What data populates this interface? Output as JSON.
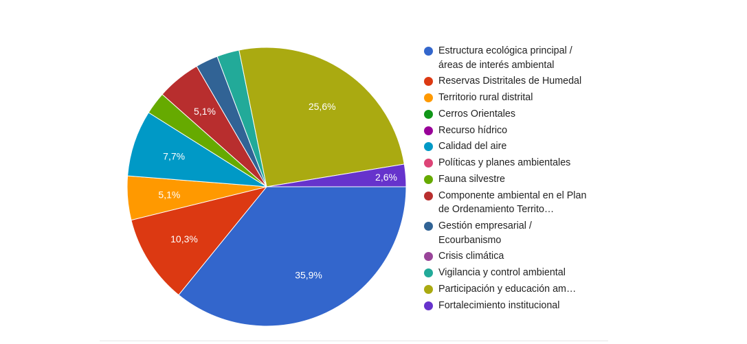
{
  "chart_data": {
    "type": "pie",
    "categories": [
      "Estructura ecológica principal / áreas de interés ambiental",
      "Reservas Distritales de Humedal",
      "Territorio rural distrital",
      "Cerros Orientales",
      "Recurso hídrico",
      "Calidad del aire",
      "Políticas y planes ambientales",
      "Fauna silvestre",
      "Componente ambiental en el Plan de Ordenamiento Territo…",
      "Gestión empresarial / Ecourbanismo",
      "Crisis climática",
      "Vigilancia y control ambiental",
      "Participación y educación am…",
      "Fortalecimiento institucional"
    ],
    "values": [
      35.9,
      10.3,
      5.1,
      0,
      0,
      7.7,
      0,
      2.6,
      5.1,
      2.6,
      0,
      2.6,
      25.6,
      2.6
    ],
    "data_labels": [
      "35,9%",
      "10,3%",
      "5,1%",
      "",
      "",
      "7,7%",
      "",
      "",
      "5,1%",
      "",
      "",
      "",
      "25,6%",
      "2,6%"
    ],
    "colors": [
      "#3366cc",
      "#dc3912",
      "#ff9900",
      "#109618",
      "#990099",
      "#0099c6",
      "#dd4477",
      "#66aa00",
      "#b82e2e",
      "#316395",
      "#994499",
      "#22aa99",
      "#aaaa11",
      "#6633cc"
    ],
    "legend_position": "right"
  }
}
